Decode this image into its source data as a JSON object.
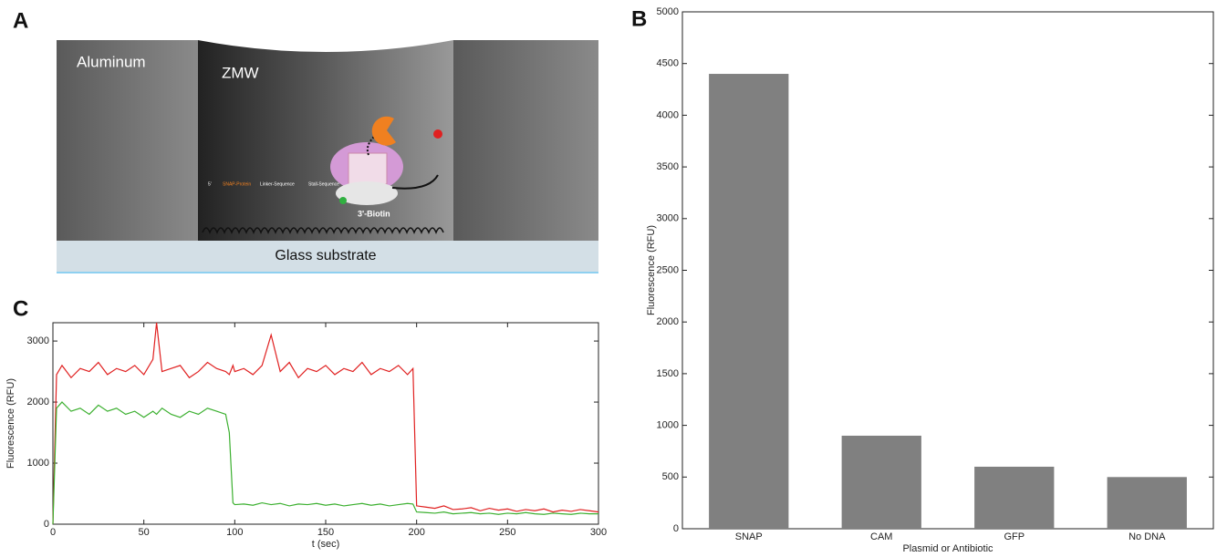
{
  "panel_labels": [
    "A",
    "B",
    "C"
  ],
  "diagram": {
    "left_wall": "Aluminum",
    "well": "ZMW",
    "substrate": "Glass substrate",
    "biotin": "3'-Biotin",
    "sequence": [
      "5'",
      "SNAP-Protein",
      "Linker-Sequence",
      "Stall-Sequence"
    ]
  },
  "chart_data": [
    {
      "type": "bar",
      "categories": [
        "SNAP",
        "CAM",
        "GFP",
        "No DNA"
      ],
      "values": [
        4400,
        900,
        600,
        500
      ],
      "color": "#808080",
      "ylim": [
        0,
        5000
      ],
      "yticks": [
        0,
        500,
        1000,
        1500,
        2000,
        2500,
        3000,
        3500,
        4000,
        4500,
        5000
      ],
      "x_label": "Plasmid or Antibiotic",
      "y_label": "Fluorescence (RFU)"
    },
    {
      "type": "line",
      "x": [
        0,
        2,
        5,
        10,
        15,
        20,
        25,
        30,
        35,
        40,
        45,
        50,
        55,
        57,
        60,
        65,
        70,
        75,
        80,
        85,
        90,
        95,
        97,
        99,
        100,
        105,
        110,
        115,
        120,
        125,
        130,
        135,
        140,
        145,
        150,
        155,
        160,
        165,
        170,
        175,
        180,
        185,
        190,
        195,
        198,
        200,
        205,
        210,
        215,
        220,
        225,
        230,
        235,
        240,
        245,
        250,
        255,
        260,
        265,
        270,
        275,
        280,
        285,
        290,
        295,
        300
      ],
      "series": [
        {
          "color": "#e02020",
          "values": [
            0,
            2450,
            2600,
            2400,
            2550,
            2500,
            2650,
            2450,
            2550,
            2500,
            2600,
            2450,
            2700,
            3300,
            2500,
            2550,
            2600,
            2400,
            2500,
            2650,
            2550,
            2500,
            2450,
            2600,
            2500,
            2550,
            2450,
            2600,
            3100,
            2500,
            2650,
            2400,
            2550,
            2500,
            2600,
            2450,
            2550,
            2500,
            2650,
            2450,
            2550,
            2500,
            2600,
            2450,
            2550,
            300,
            280,
            260,
            300,
            240,
            250,
            270,
            220,
            260,
            230,
            250,
            210,
            240,
            220,
            250,
            200,
            230,
            210,
            240,
            220,
            200
          ]
        },
        {
          "color": "#3cb030",
          "values": [
            0,
            1900,
            2000,
            1850,
            1900,
            1800,
            1950,
            1850,
            1900,
            1800,
            1850,
            1750,
            1850,
            1800,
            1900,
            1800,
            1750,
            1850,
            1800,
            1900,
            1850,
            1800,
            1500,
            350,
            320,
            330,
            310,
            350,
            320,
            340,
            300,
            330,
            320,
            340,
            310,
            330,
            300,
            320,
            340,
            310,
            330,
            300,
            320,
            340,
            330,
            200,
            190,
            180,
            200,
            170,
            180,
            190,
            170,
            180,
            160,
            180,
            170,
            190,
            170,
            160,
            180,
            170,
            160,
            180,
            170,
            170
          ]
        }
      ],
      "xlim": [
        0,
        300
      ],
      "xticks": [
        0,
        50,
        100,
        150,
        200,
        250,
        300
      ],
      "ylim": [
        0,
        3300
      ],
      "yticks": [
        0,
        1000,
        2000,
        3000
      ],
      "x_label": "t (sec)",
      "y_label": "Fluorescence (RFU)"
    }
  ]
}
